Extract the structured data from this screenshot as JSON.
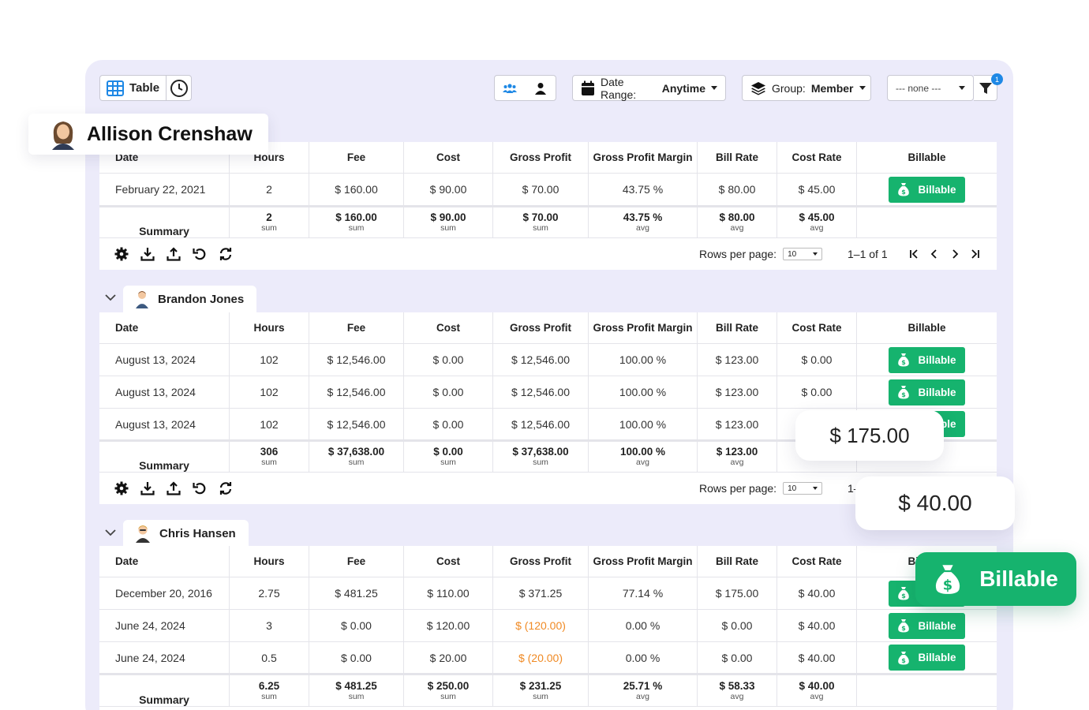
{
  "toolbar": {
    "table_label": "Table",
    "date_range_label": "Date Range:",
    "date_range_value": "Anytime",
    "group_label": "Group:",
    "group_value": "Member",
    "filter_select": "--- none ---",
    "filter_badge": "1"
  },
  "columns": [
    "Date",
    "Hours",
    "Fee",
    "Cost",
    "Gross Profit",
    "Gross Profit Margin",
    "Bill Rate",
    "Cost Rate",
    "Billable"
  ],
  "billable_label": "Billable",
  "summary_label": "Summary",
  "footer": {
    "rows_per_page_label": "Rows per page:",
    "rows_per_page_value": "10",
    "page_info": "1–1 of 1"
  },
  "groups": [
    {
      "member": "Allison Crenshaw",
      "rows": [
        [
          "February 22, 2021",
          "2",
          "$ 160.00",
          "$ 90.00",
          "$ 70.00",
          "43.75 %",
          "$ 80.00",
          "$ 45.00"
        ]
      ],
      "summary": [
        [
          "2",
          "sum"
        ],
        [
          "$ 160.00",
          "sum"
        ],
        [
          "$ 90.00",
          "sum"
        ],
        [
          "$ 70.00",
          "sum"
        ],
        [
          "43.75 %",
          "avg"
        ],
        [
          "$ 80.00",
          "avg"
        ],
        [
          "$ 45.00",
          "avg"
        ]
      ]
    },
    {
      "member": "Brandon Jones",
      "rows": [
        [
          "August 13, 2024",
          "102",
          "$ 12,546.00",
          "$ 0.00",
          "$ 12,546.00",
          "100.00 %",
          "$ 123.00",
          "$ 0.00"
        ],
        [
          "August 13, 2024",
          "102",
          "$ 12,546.00",
          "$ 0.00",
          "$ 12,546.00",
          "100.00 %",
          "$ 123.00",
          "$ 0.00"
        ],
        [
          "August 13, 2024",
          "102",
          "$ 12,546.00",
          "$ 0.00",
          "$ 12,546.00",
          "100.00 %",
          "$ 123.00",
          ""
        ]
      ],
      "summary": [
        [
          "306",
          "sum"
        ],
        [
          "$ 37,638.00",
          "sum"
        ],
        [
          "$ 0.00",
          "sum"
        ],
        [
          "$ 37,638.00",
          "sum"
        ],
        [
          "100.00 %",
          "avg"
        ],
        [
          "$ 123.00",
          "avg"
        ],
        [
          "",
          "avg"
        ]
      ]
    },
    {
      "member": "Chris Hansen",
      "rows": [
        [
          "December 20, 2016",
          "2.75",
          "$ 481.25",
          "$ 110.00",
          "$ 371.25",
          "77.14 %",
          "$ 175.00",
          "$ 40.00"
        ],
        [
          "June 24, 2024",
          "3",
          "$ 0.00",
          "$ 120.00",
          "$ (120.00)",
          "0.00 %",
          "$ 0.00",
          "$ 40.00"
        ],
        [
          "June 24, 2024",
          "0.5",
          "$ 0.00",
          "$ 20.00",
          "$ (20.00)",
          "0.00 %",
          "$ 0.00",
          "$ 40.00"
        ]
      ],
      "summary": [
        [
          "6.25",
          "sum"
        ],
        [
          "$ 481.25",
          "sum"
        ],
        [
          "$ 250.00",
          "sum"
        ],
        [
          "$ 231.25",
          "sum"
        ],
        [
          "25.71 %",
          "avg"
        ],
        [
          "$ 58.33",
          "avg"
        ],
        [
          "$ 40.00",
          "avg"
        ]
      ]
    }
  ],
  "overlays": {
    "bill_rate_callout": "$ 175.00",
    "cost_rate_callout": "$ 40.00",
    "billable_callout": "Billable"
  },
  "colors": {
    "billable_green": "#16b36e",
    "negative_orange": "#f08a24",
    "panel_bg": "#ecebfa",
    "badge_blue": "#1e88e5"
  }
}
